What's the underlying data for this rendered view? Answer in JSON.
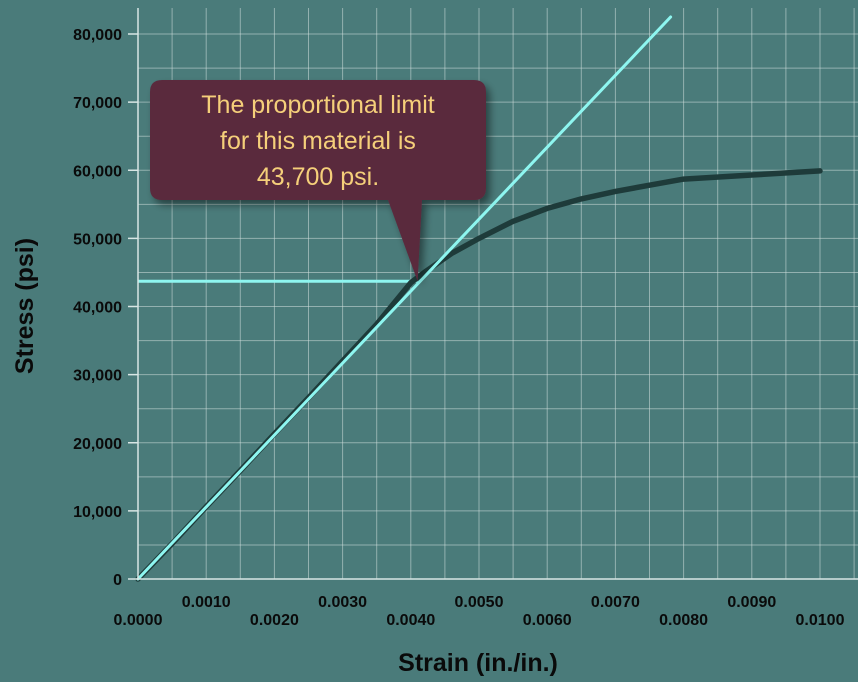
{
  "chart_data": {
    "type": "line",
    "xlabel": "Strain (in./in.)",
    "ylabel": "Stress (psi)",
    "xlim": [
      0,
      0.01
    ],
    "ylim": [
      0,
      80000
    ],
    "x_ticks_lower": [
      "0.0000",
      "0.0020",
      "0.0040",
      "0.0060",
      "0.0080",
      "0.0100"
    ],
    "x_ticks_upper": [
      "0.0010",
      "0.0030",
      "0.0050",
      "0.0070",
      "0.0090"
    ],
    "x_ticks_lower_values": [
      0,
      0.002,
      0.004,
      0.006,
      0.008,
      0.01
    ],
    "x_ticks_upper_values": [
      0.001,
      0.003,
      0.005,
      0.007,
      0.009
    ],
    "y_ticks": [
      "0",
      "10,000",
      "20,000",
      "30,000",
      "40,000",
      "50,000",
      "60,000",
      "70,000",
      "80,000"
    ],
    "y_tick_values": [
      0,
      10000,
      20000,
      30000,
      40000,
      50000,
      60000,
      70000,
      80000
    ],
    "grid": true,
    "series": [
      {
        "role": "stress-strain curve",
        "color": "#1e3b3a",
        "x": [
          0,
          0.0005,
          0.001,
          0.0015,
          0.002,
          0.0025,
          0.003,
          0.0035,
          0.004,
          0.0042,
          0.0046,
          0.005,
          0.0055,
          0.006,
          0.0065,
          0.007,
          0.0075,
          0.008,
          0.009,
          0.01
        ],
        "y": [
          0,
          5200,
          10600,
          15900,
          21300,
          26600,
          32000,
          37400,
          43500,
          45000,
          47800,
          50000,
          52500,
          54400,
          55800,
          56900,
          57800,
          58700,
          59300,
          59900
        ]
      },
      {
        "role": "proportional line",
        "color": "#8ef6f0",
        "x": [
          0,
          0.00781
        ],
        "y": [
          0,
          82500
        ]
      }
    ],
    "reference_line": {
      "y": 43700,
      "x_end": 0.0041,
      "color": "#8ef6f0"
    },
    "annotation": {
      "lines": [
        "The proportional limit",
        "for this material is",
        "43,700 psi."
      ],
      "point": {
        "x": 0.0041,
        "y": 43700
      },
      "box_color": "#5a2a3e",
      "text_color": "#f5cf7a"
    }
  }
}
